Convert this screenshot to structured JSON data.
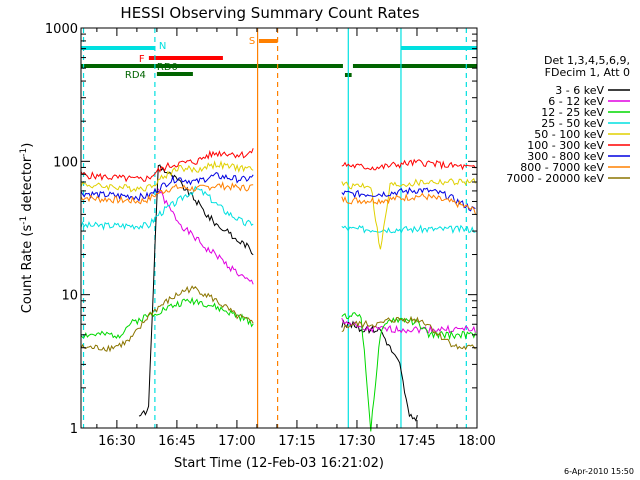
{
  "chart_data": {
    "type": "line",
    "title": "HESSI Observing Summary Count Rates",
    "xlabel": "Start Time (12-Feb-03 16:21:02)",
    "ylabel": "Count Rate (s",
    "ylabel_unit_1": "-1",
    "ylabel_mid": " detector",
    "ylabel_unit_2": "-1",
    "ylabel_end": ")",
    "y_scale": "log",
    "xlim": [
      "16:21:02",
      "18:00:00"
    ],
    "ylim": [
      1,
      1000
    ],
    "x_ticks": [
      "16:30",
      "16:45",
      "17:00",
      "17:15",
      "17:30",
      "17:45",
      "18:00"
    ],
    "y_ticks": [
      "1",
      "10",
      "100",
      "1000"
    ],
    "legend_header": [
      "Det 1,3,4,5,6,9,",
      "FDecim 1, Att 0"
    ],
    "legend_position": "right",
    "timestamp": "6-Apr-2010 15:50",
    "series": [
      {
        "name": "3 - 6 keV",
        "color": "#000000",
        "base": [
          null,
          null,
          null,
          null,
          null,
          null,
          1.2,
          1.4,
          95,
          82,
          72,
          60,
          50,
          40,
          34,
          30,
          26,
          24,
          20,
          null,
          null,
          null,
          null,
          null,
          null,
          null,
          null,
          6,
          6,
          5.5,
          5.5,
          5.5,
          4,
          3,
          1.2,
          1.2,
          null,
          null,
          null,
          null,
          null,
          null
        ]
      },
      {
        "name": "6 - 12 keV",
        "color": "#e000e0",
        "base": [
          null,
          null,
          null,
          null,
          null,
          null,
          null,
          null,
          62,
          46,
          36,
          30,
          26,
          22,
          20,
          17,
          15,
          13,
          12,
          null,
          null,
          null,
          null,
          null,
          null,
          null,
          null,
          6.5,
          6,
          5.5,
          5.5,
          5.5,
          5.5,
          5.5,
          5.5,
          5.5,
          5.5,
          5.5,
          5.5,
          5.5,
          5.5,
          5.5
        ]
      },
      {
        "name": "12 - 25 keV",
        "color": "#00d800",
        "base": [
          5,
          5,
          5,
          5,
          5,
          6,
          6.5,
          7,
          7.5,
          8,
          8.5,
          9,
          9,
          8.5,
          8,
          7.5,
          7,
          6.5,
          6,
          null,
          null,
          null,
          null,
          null,
          null,
          null,
          null,
          7,
          7,
          7,
          1,
          5,
          6.5,
          6.5,
          6.5,
          6,
          5,
          5,
          5,
          5,
          5,
          5
        ]
      },
      {
        "name": "25 - 50 keV",
        "color": "#00e0e0",
        "base": [
          33,
          33,
          33,
          33,
          33,
          33,
          33,
          33,
          40,
          45,
          50,
          57,
          62,
          56,
          48,
          42,
          38,
          34,
          35,
          null,
          null,
          null,
          null,
          null,
          null,
          null,
          null,
          32,
          31,
          31,
          31,
          31,
          31,
          31,
          31,
          31,
          31,
          31,
          31,
          31,
          31,
          31
        ]
      },
      {
        "name": "50 - 100 keV",
        "color": "#e0d000",
        "base": [
          68,
          66,
          65,
          65,
          64,
          63,
          63,
          64,
          72,
          80,
          90,
          88,
          85,
          92,
          95,
          92,
          90,
          88,
          90,
          null,
          null,
          null,
          null,
          null,
          null,
          null,
          null,
          67,
          66,
          66,
          66,
          21,
          66,
          67,
          68,
          69,
          70,
          70,
          70,
          70,
          70,
          70
        ]
      },
      {
        "name": "100 - 300 keV",
        "color": "#ff0000",
        "base": [
          80,
          78,
          77,
          76,
          75,
          74,
          73,
          75,
          85,
          92,
          96,
          98,
          100,
          110,
          115,
          116,
          113,
          112,
          120,
          null,
          null,
          null,
          null,
          null,
          null,
          null,
          null,
          95,
          93,
          91,
          90,
          90,
          93,
          95,
          97,
          98,
          97,
          95,
          93,
          92,
          90,
          88
        ]
      },
      {
        "name": "300 - 800 keV",
        "color": "#0000e0",
        "base": [
          58,
          57,
          56,
          56,
          55,
          55,
          54,
          55,
          62,
          70,
          75,
          72,
          70,
          75,
          78,
          76,
          74,
          73,
          77,
          null,
          null,
          null,
          null,
          null,
          null,
          null,
          null,
          58,
          57,
          57,
          57,
          57,
          58,
          59,
          60,
          61,
          60,
          58,
          55,
          50,
          46,
          42
        ]
      },
      {
        "name": "800 - 7000 keV",
        "color": "#ff8000",
        "base": [
          54,
          53,
          52,
          52,
          51,
          51,
          50,
          52,
          58,
          62,
          64,
          63,
          62,
          64,
          66,
          65,
          64,
          63,
          66,
          null,
          null,
          null,
          null,
          null,
          null,
          null,
          null,
          52,
          51,
          51,
          51,
          51,
          52,
          53,
          54,
          55,
          54,
          52,
          50,
          48,
          45,
          42
        ]
      },
      {
        "name": "7000 - 20000 keV",
        "color": "#8b7500",
        "base": [
          4,
          4,
          4,
          4,
          4.2,
          4.5,
          5.5,
          7,
          8,
          9,
          10,
          11,
          11,
          10,
          9,
          8,
          7,
          6.5,
          6,
          null,
          null,
          null,
          null,
          null,
          null,
          null,
          null,
          5.5,
          6,
          6,
          6,
          6,
          6.5,
          6.5,
          6.5,
          6.5,
          6,
          5,
          4.5,
          4,
          4,
          4
        ]
      }
    ],
    "flags": [
      {
        "label": "N",
        "color": "#00e0e0"
      },
      {
        "label": "F",
        "color": "#ff0000"
      },
      {
        "label": "S",
        "color": "#ff8000"
      },
      {
        "label": "RD0",
        "color": "#006400"
      },
      {
        "label": "RD4",
        "color": "#006400"
      }
    ]
  }
}
